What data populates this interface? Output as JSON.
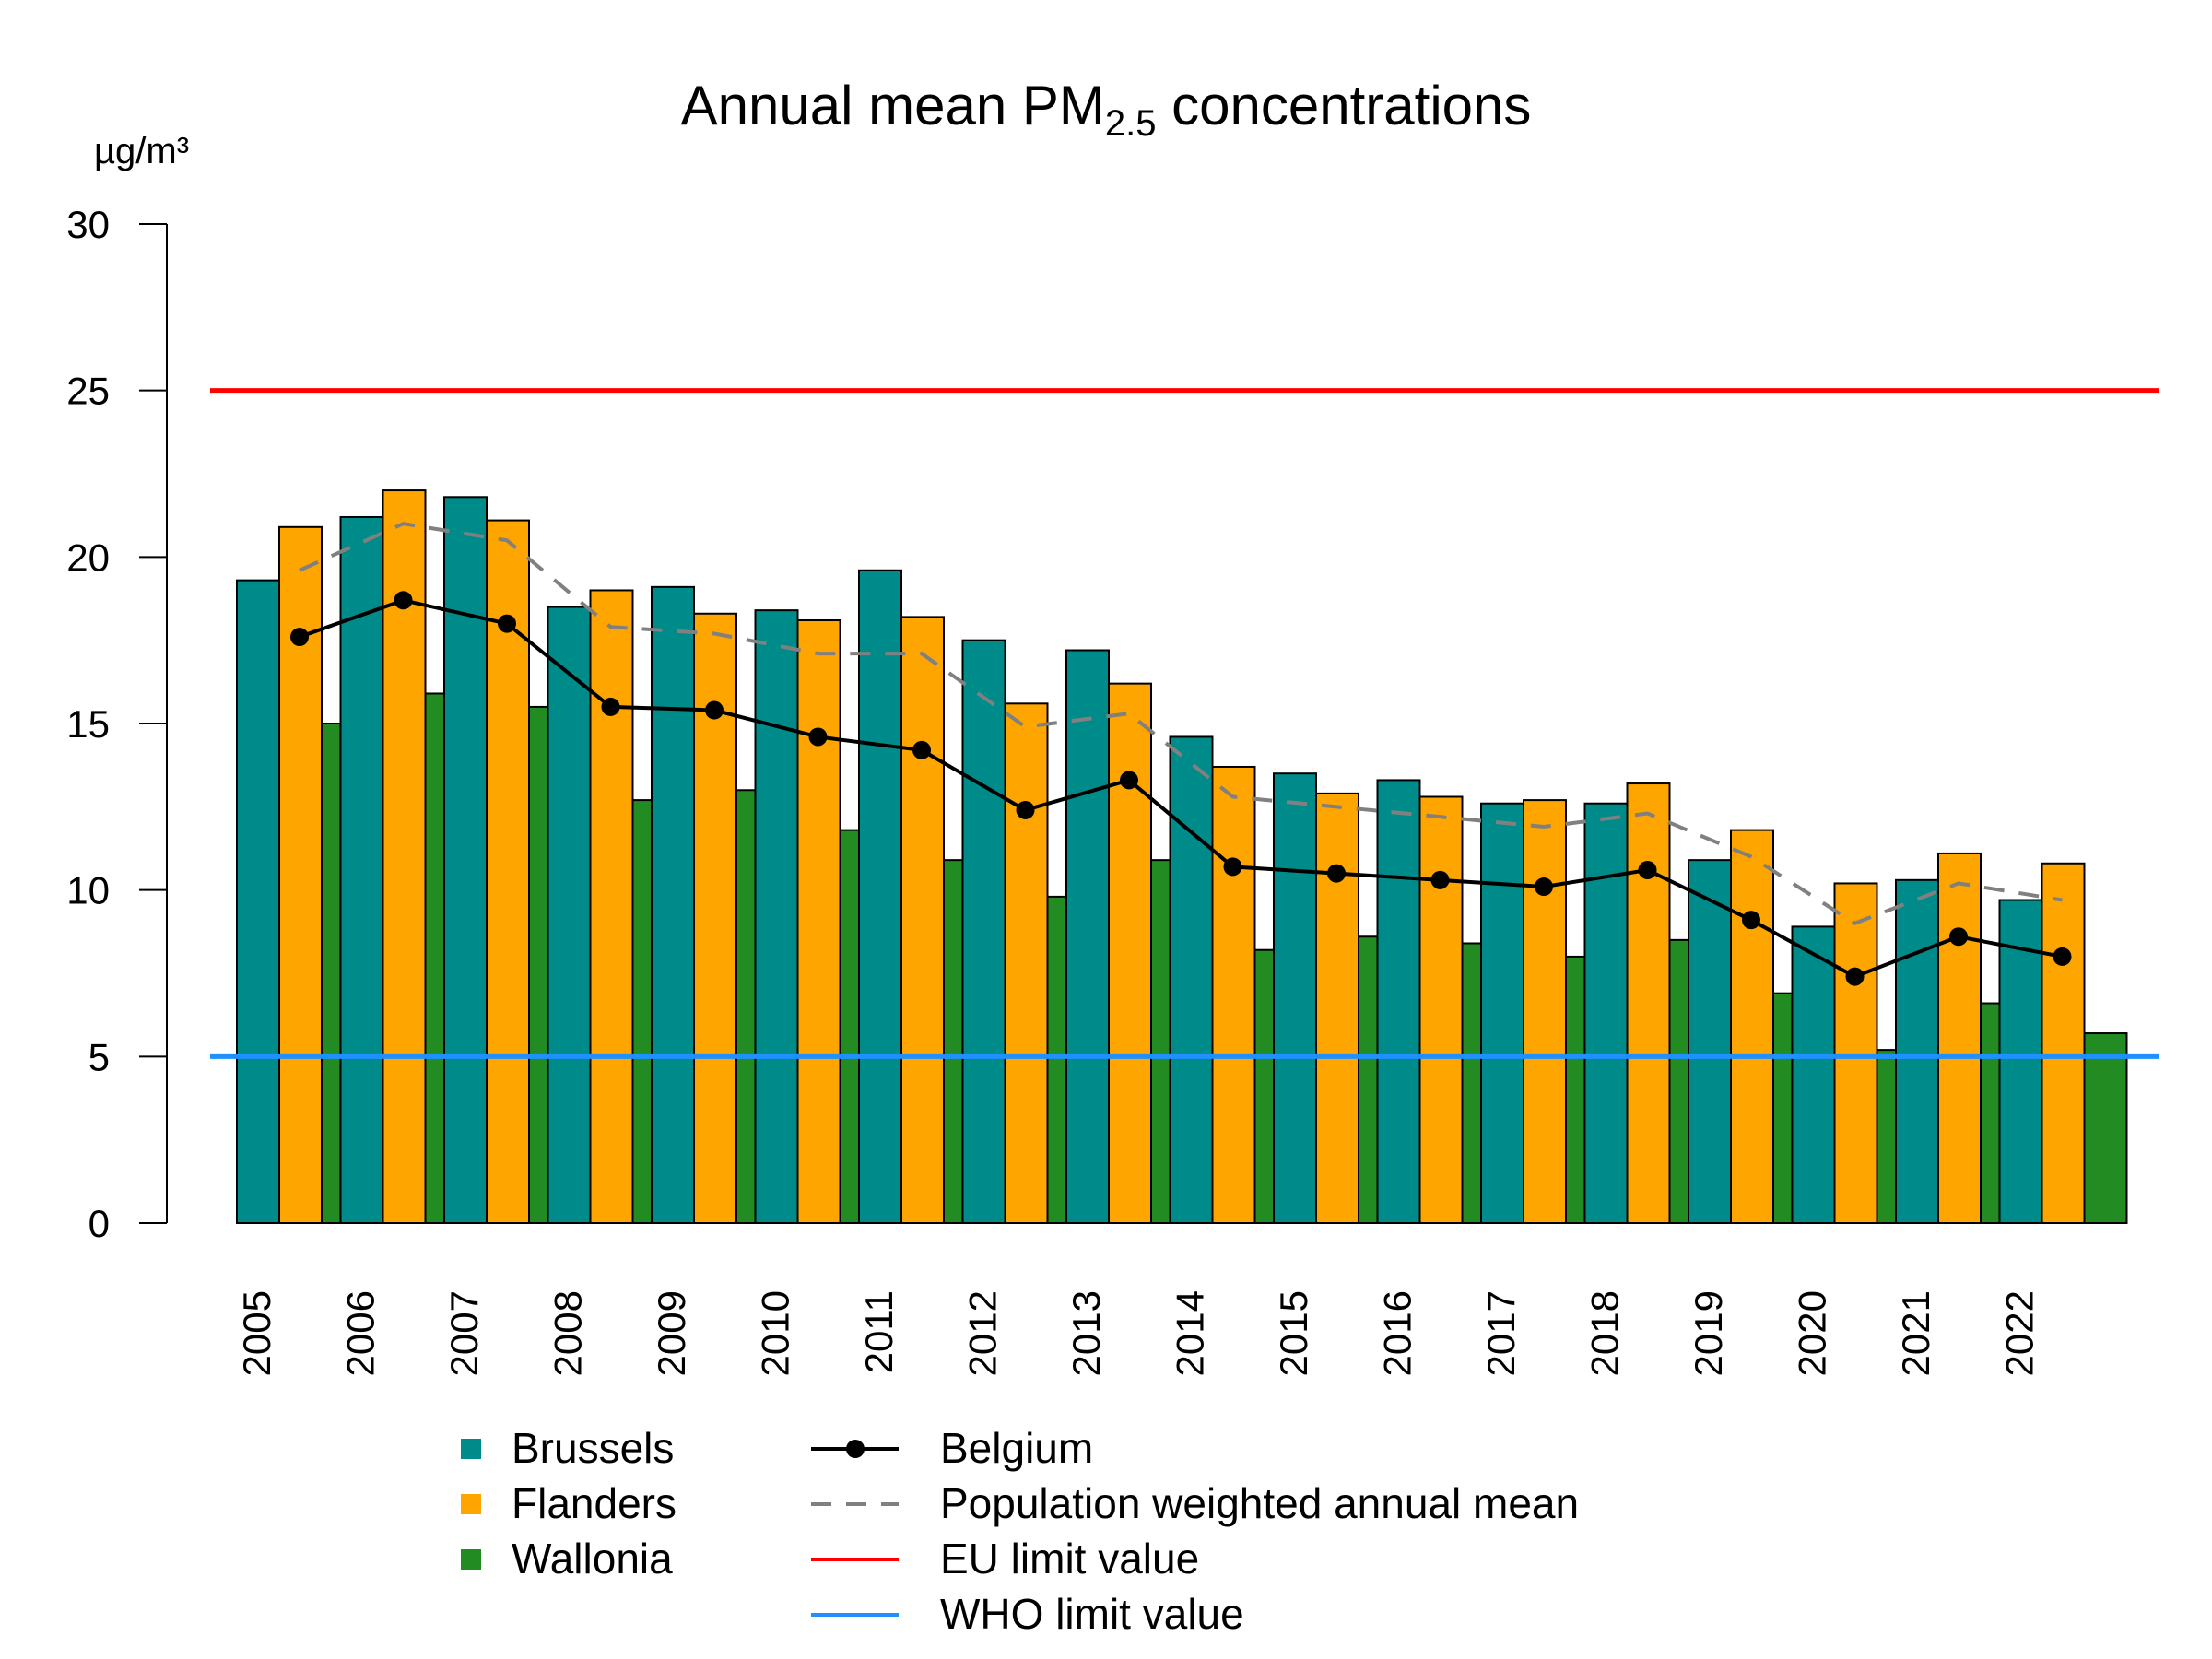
{
  "chart_data": {
    "type": "bar",
    "title_main": "Annual mean PM",
    "title_sub": "2.5",
    "title_rest": " concentrations",
    "ylabel": "µg/m³",
    "xlabel": "",
    "ylim": [
      0,
      30
    ],
    "yticks": [
      0,
      5,
      10,
      15,
      20,
      25,
      30
    ],
    "categories": [
      "2005",
      "2006",
      "2007",
      "2008",
      "2009",
      "2010",
      "2011",
      "2012",
      "2013",
      "2014",
      "2015",
      "2016",
      "2017",
      "2018",
      "2019",
      "2020",
      "2021",
      "2022"
    ],
    "series": [
      {
        "name": "Brussels",
        "color": "#008B8B",
        "values": [
          19.3,
          21.2,
          21.8,
          18.5,
          19.1,
          18.4,
          19.6,
          17.5,
          17.2,
          14.6,
          13.5,
          13.3,
          12.6,
          12.6,
          10.9,
          8.9,
          10.3,
          9.7
        ]
      },
      {
        "name": "Flanders",
        "color": "#FFA500",
        "values": [
          20.9,
          22.0,
          21.1,
          19.0,
          18.3,
          18.1,
          18.2,
          15.6,
          16.2,
          13.7,
          12.9,
          12.8,
          12.7,
          13.2,
          11.8,
          10.2,
          11.1,
          10.8
        ]
      },
      {
        "name": "Wallonia",
        "color": "#228B22",
        "values": [
          15.0,
          15.9,
          15.5,
          12.7,
          13.0,
          11.8,
          10.9,
          9.8,
          10.9,
          8.2,
          8.6,
          8.4,
          8.0,
          8.5,
          6.9,
          5.2,
          6.6,
          5.7
        ]
      }
    ],
    "lines": [
      {
        "name": "Belgium",
        "color": "#000000",
        "style": "solid-with-points",
        "values": [
          17.6,
          18.7,
          18.0,
          15.5,
          15.4,
          14.6,
          14.2,
          12.4,
          13.3,
          10.7,
          10.5,
          10.3,
          10.1,
          10.6,
          9.1,
          7.4,
          8.6,
          8.0
        ]
      },
      {
        "name": "Population weighted annual mean",
        "color": "#808080",
        "style": "dashed",
        "values": [
          19.6,
          21.0,
          20.5,
          17.9,
          17.7,
          17.1,
          17.1,
          14.9,
          15.3,
          12.8,
          12.5,
          12.2,
          11.9,
          12.3,
          11.0,
          9.0,
          10.2,
          9.7
        ]
      }
    ],
    "reference_lines": [
      {
        "name": "EU limit value",
        "color": "#FF0000",
        "value": 25
      },
      {
        "name": "WHO limit value",
        "color": "#1E90FF",
        "value": 5
      }
    ],
    "legend_position": "bottom",
    "grid": false
  }
}
